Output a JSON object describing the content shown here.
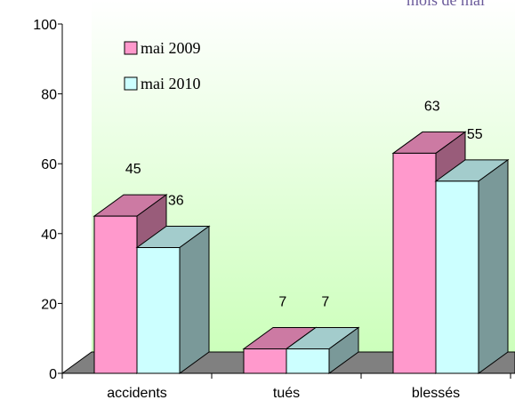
{
  "chart_data": {
    "type": "bar3d",
    "title": "mois de mai",
    "categories": [
      "accidents",
      "tués",
      "blessés"
    ],
    "series": [
      {
        "name": "mai 2009",
        "color": "#ff99cc",
        "values": [
          45,
          7,
          63
        ]
      },
      {
        "name": "mai 2010",
        "color": "#ccffff",
        "values": [
          36,
          7,
          55
        ]
      }
    ],
    "ylim": [
      0,
      100
    ],
    "yticks": [
      0,
      20,
      40,
      60,
      80,
      100
    ],
    "legend": "top-left"
  }
}
